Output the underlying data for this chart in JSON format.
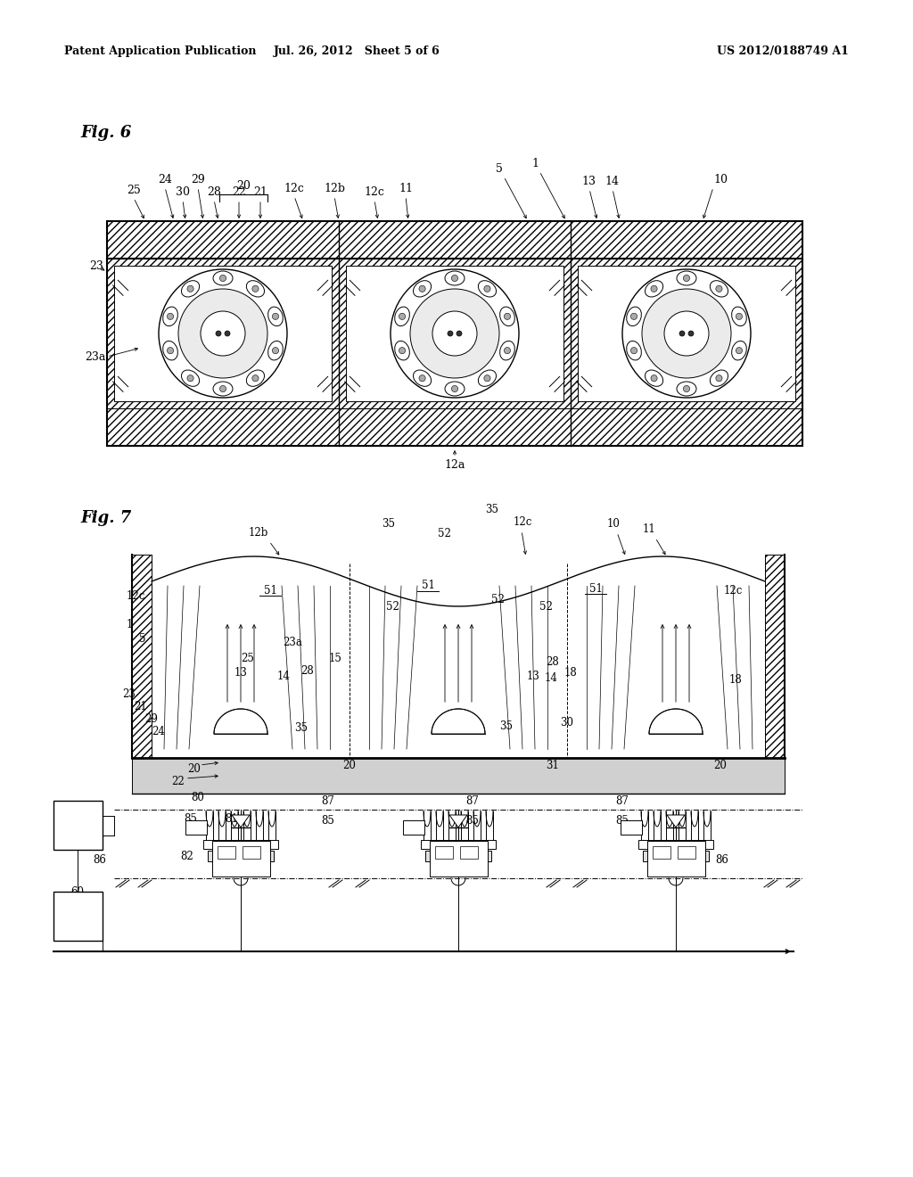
{
  "bg": "#ffffff",
  "lc": "#000000",
  "header_left": "Patent Application Publication",
  "header_mid": "Jul. 26, 2012   Sheet 5 of 6",
  "header_right": "US 2012/0188749 A1",
  "fig6_label": "Fig. 6",
  "fig7_label": "Fig. 7"
}
